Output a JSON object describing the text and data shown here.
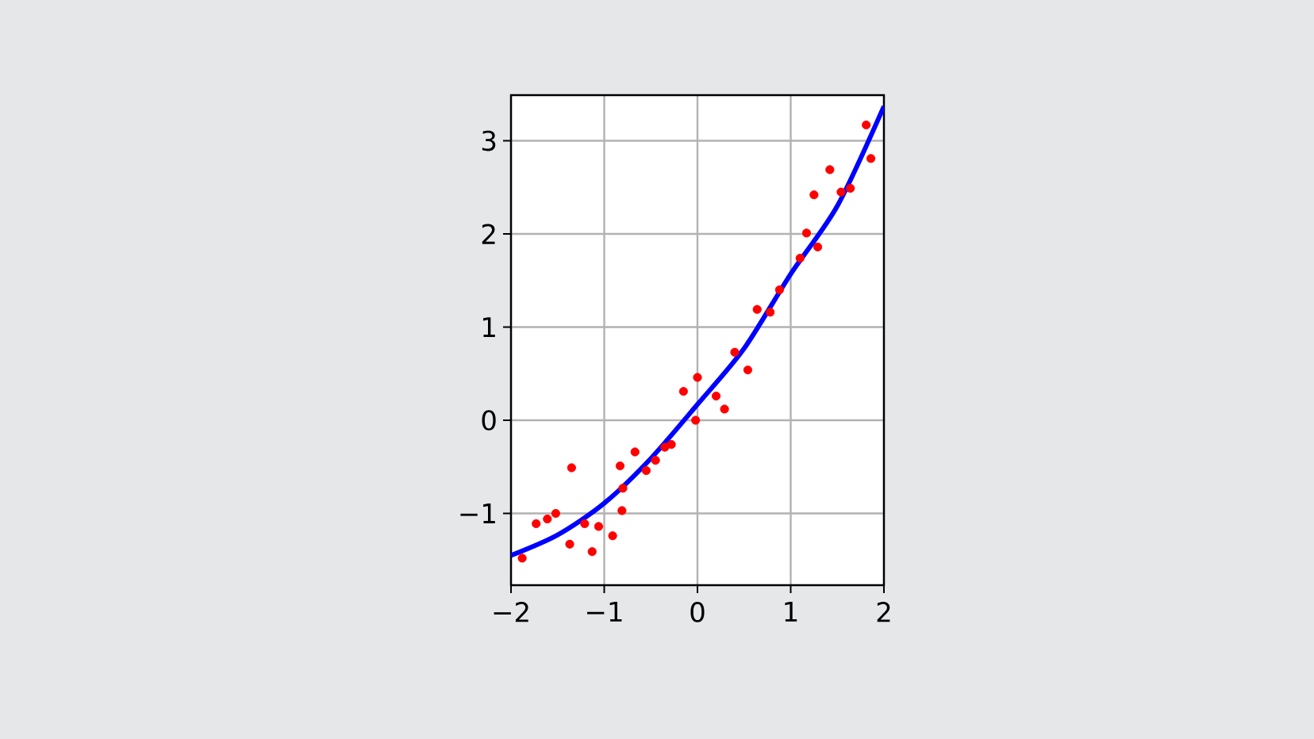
{
  "chart_data": {
    "type": "scatter",
    "xlim": [
      -2,
      2
    ],
    "ylim": [
      -1.77,
      3.49
    ],
    "xticks": [
      {
        "value": -2,
        "label": "−2"
      },
      {
        "value": -1,
        "label": "−1"
      },
      0,
      1,
      2
    ],
    "yticks": [
      {
        "value": -1,
        "label": "−1"
      },
      0,
      1,
      2,
      3
    ],
    "grid": true,
    "series": [
      {
        "color": "#ff0000",
        "marker": "circle",
        "x": [
          -1.88,
          -1.73,
          -1.61,
          -1.52,
          -1.35,
          -1.37,
          -1.21,
          -1.13,
          -1.06,
          -0.91,
          -0.81,
          -0.83,
          -0.8,
          -0.67,
          -0.55,
          -0.45,
          -0.35,
          -0.28,
          -0.15,
          0.0,
          -0.02,
          0.2,
          0.29,
          0.4,
          0.54,
          0.64,
          0.78,
          0.88,
          1.1,
          1.17,
          1.25,
          1.29,
          1.42,
          1.54,
          1.64,
          1.81,
          1.86
        ],
        "values": [
          -1.48,
          -1.11,
          -1.06,
          -1.0,
          -0.51,
          -1.33,
          -1.11,
          -1.41,
          -1.14,
          -1.24,
          -0.97,
          -0.49,
          -0.73,
          -0.34,
          -0.54,
          -0.43,
          -0.29,
          -0.26,
          0.31,
          0.46,
          0.0,
          0.26,
          0.12,
          0.73,
          0.54,
          1.19,
          1.16,
          1.4,
          1.74,
          2.01,
          2.42,
          1.86,
          2.69,
          2.45,
          2.49,
          3.17,
          2.81
        ]
      },
      {
        "type": "line",
        "color": "#0000ff",
        "line_style": "solid",
        "x": [
          -2,
          -1.5,
          -1,
          -0.5,
          0,
          0.5,
          1,
          1.5,
          2
        ],
        "values": [
          -1.45,
          -1.23,
          -0.89,
          -0.41,
          0.17,
          0.77,
          1.57,
          2.3,
          3.37
        ]
      }
    ]
  }
}
